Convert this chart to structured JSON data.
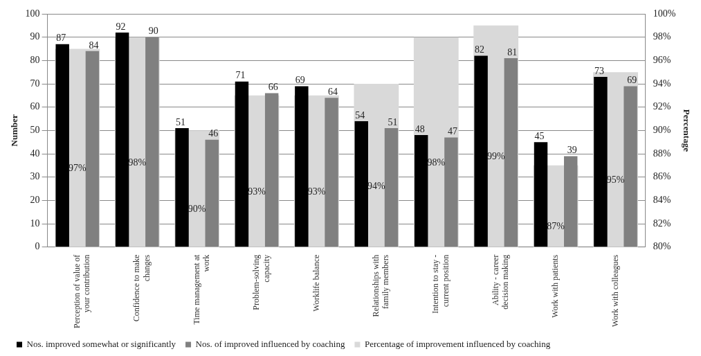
{
  "chart_data": {
    "type": "bar",
    "ylabel": "Number",
    "y2label": "Percentage",
    "categories": [
      "Perception of value of your contribution",
      "Confidence to make changes",
      "Time management at work",
      "Problem-solving capacity",
      "Worklife balance",
      "Relationships with family members",
      "Intention to stay - current position",
      "Ability - career decision making",
      "Work with patients",
      "Work with colleagues"
    ],
    "series": [
      {
        "name": "Percentage of improvement influenced by coaching",
        "type": "bar",
        "axis": "y2",
        "color": "#d9d9d9",
        "values": [
          97,
          98,
          90,
          93,
          93,
          94,
          98,
          99,
          87,
          95
        ],
        "value_labels": [
          "97%",
          "98%",
          "90%",
          "93%",
          "93%",
          "94%",
          "98%",
          "99%",
          "87%",
          "95%"
        ]
      },
      {
        "name": "Nos. improved somewhat or significantly",
        "color": "#000000",
        "values": [
          87,
          92,
          51,
          71,
          69,
          54,
          48,
          82,
          45,
          73
        ],
        "value_labels": [
          "87",
          "92",
          "51",
          "71",
          "69",
          "54",
          "48",
          "82",
          "45",
          "73"
        ]
      },
      {
        "name": "Nos. of improved influenced by coaching",
        "color": "#808080",
        "values": [
          84,
          90,
          46,
          66,
          64,
          51,
          47,
          81,
          39,
          69
        ],
        "value_labels": [
          "84",
          "90",
          "46",
          "66",
          "64",
          "51",
          "47",
          "81",
          "39",
          "69"
        ]
      }
    ],
    "ylim": [
      0,
      100
    ],
    "yticks": [
      0,
      10,
      20,
      30,
      40,
      50,
      60,
      70,
      80,
      90,
      100
    ],
    "y2lim": [
      80,
      100
    ],
    "y2ticks": [
      {
        "value": 80,
        "label": "80%"
      },
      {
        "value": 82,
        "label": "82%"
      },
      {
        "value": 84,
        "label": "84%"
      },
      {
        "value": 86,
        "label": "86%"
      },
      {
        "value": 88,
        "label": "88%"
      },
      {
        "value": 90,
        "label": "90%"
      },
      {
        "value": 92,
        "label": "92%"
      },
      {
        "value": 94,
        "label": "94%"
      },
      {
        "value": 96,
        "label": "96%"
      },
      {
        "value": 98,
        "label": "98%"
      },
      {
        "value": 100,
        "label": "100%"
      }
    ],
    "grid": "y",
    "legend": "bottom"
  }
}
